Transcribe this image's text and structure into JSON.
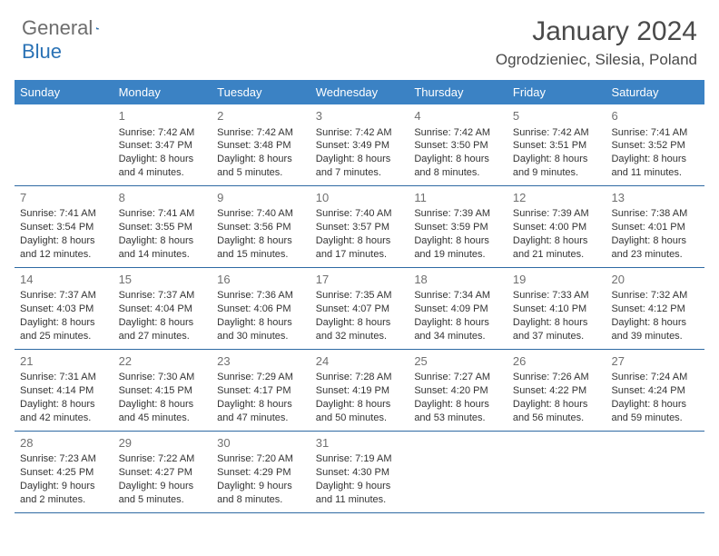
{
  "logo": {
    "general": "General",
    "blue": "Blue"
  },
  "title": "January 2024",
  "location": "Ogrodzieniec, Silesia, Poland",
  "colors": {
    "header_bg": "#3b82c4",
    "header_text": "#ffffff",
    "row_border": "#2f6aa3",
    "day_num": "#707070",
    "body_text": "#333333",
    "logo_gray": "#6d6d6d",
    "logo_blue": "#2a72b5",
    "background": "#ffffff"
  },
  "weekdays": [
    "Sunday",
    "Monday",
    "Tuesday",
    "Wednesday",
    "Thursday",
    "Friday",
    "Saturday"
  ],
  "weeks": [
    [
      null,
      {
        "n": "1",
        "sr": "Sunrise: 7:42 AM",
        "ss": "Sunset: 3:47 PM",
        "d1": "Daylight: 8 hours",
        "d2": "and 4 minutes."
      },
      {
        "n": "2",
        "sr": "Sunrise: 7:42 AM",
        "ss": "Sunset: 3:48 PM",
        "d1": "Daylight: 8 hours",
        "d2": "and 5 minutes."
      },
      {
        "n": "3",
        "sr": "Sunrise: 7:42 AM",
        "ss": "Sunset: 3:49 PM",
        "d1": "Daylight: 8 hours",
        "d2": "and 7 minutes."
      },
      {
        "n": "4",
        "sr": "Sunrise: 7:42 AM",
        "ss": "Sunset: 3:50 PM",
        "d1": "Daylight: 8 hours",
        "d2": "and 8 minutes."
      },
      {
        "n": "5",
        "sr": "Sunrise: 7:42 AM",
        "ss": "Sunset: 3:51 PM",
        "d1": "Daylight: 8 hours",
        "d2": "and 9 minutes."
      },
      {
        "n": "6",
        "sr": "Sunrise: 7:41 AM",
        "ss": "Sunset: 3:52 PM",
        "d1": "Daylight: 8 hours",
        "d2": "and 11 minutes."
      }
    ],
    [
      {
        "n": "7",
        "sr": "Sunrise: 7:41 AM",
        "ss": "Sunset: 3:54 PM",
        "d1": "Daylight: 8 hours",
        "d2": "and 12 minutes."
      },
      {
        "n": "8",
        "sr": "Sunrise: 7:41 AM",
        "ss": "Sunset: 3:55 PM",
        "d1": "Daylight: 8 hours",
        "d2": "and 14 minutes."
      },
      {
        "n": "9",
        "sr": "Sunrise: 7:40 AM",
        "ss": "Sunset: 3:56 PM",
        "d1": "Daylight: 8 hours",
        "d2": "and 15 minutes."
      },
      {
        "n": "10",
        "sr": "Sunrise: 7:40 AM",
        "ss": "Sunset: 3:57 PM",
        "d1": "Daylight: 8 hours",
        "d2": "and 17 minutes."
      },
      {
        "n": "11",
        "sr": "Sunrise: 7:39 AM",
        "ss": "Sunset: 3:59 PM",
        "d1": "Daylight: 8 hours",
        "d2": "and 19 minutes."
      },
      {
        "n": "12",
        "sr": "Sunrise: 7:39 AM",
        "ss": "Sunset: 4:00 PM",
        "d1": "Daylight: 8 hours",
        "d2": "and 21 minutes."
      },
      {
        "n": "13",
        "sr": "Sunrise: 7:38 AM",
        "ss": "Sunset: 4:01 PM",
        "d1": "Daylight: 8 hours",
        "d2": "and 23 minutes."
      }
    ],
    [
      {
        "n": "14",
        "sr": "Sunrise: 7:37 AM",
        "ss": "Sunset: 4:03 PM",
        "d1": "Daylight: 8 hours",
        "d2": "and 25 minutes."
      },
      {
        "n": "15",
        "sr": "Sunrise: 7:37 AM",
        "ss": "Sunset: 4:04 PM",
        "d1": "Daylight: 8 hours",
        "d2": "and 27 minutes."
      },
      {
        "n": "16",
        "sr": "Sunrise: 7:36 AM",
        "ss": "Sunset: 4:06 PM",
        "d1": "Daylight: 8 hours",
        "d2": "and 30 minutes."
      },
      {
        "n": "17",
        "sr": "Sunrise: 7:35 AM",
        "ss": "Sunset: 4:07 PM",
        "d1": "Daylight: 8 hours",
        "d2": "and 32 minutes."
      },
      {
        "n": "18",
        "sr": "Sunrise: 7:34 AM",
        "ss": "Sunset: 4:09 PM",
        "d1": "Daylight: 8 hours",
        "d2": "and 34 minutes."
      },
      {
        "n": "19",
        "sr": "Sunrise: 7:33 AM",
        "ss": "Sunset: 4:10 PM",
        "d1": "Daylight: 8 hours",
        "d2": "and 37 minutes."
      },
      {
        "n": "20",
        "sr": "Sunrise: 7:32 AM",
        "ss": "Sunset: 4:12 PM",
        "d1": "Daylight: 8 hours",
        "d2": "and 39 minutes."
      }
    ],
    [
      {
        "n": "21",
        "sr": "Sunrise: 7:31 AM",
        "ss": "Sunset: 4:14 PM",
        "d1": "Daylight: 8 hours",
        "d2": "and 42 minutes."
      },
      {
        "n": "22",
        "sr": "Sunrise: 7:30 AM",
        "ss": "Sunset: 4:15 PM",
        "d1": "Daylight: 8 hours",
        "d2": "and 45 minutes."
      },
      {
        "n": "23",
        "sr": "Sunrise: 7:29 AM",
        "ss": "Sunset: 4:17 PM",
        "d1": "Daylight: 8 hours",
        "d2": "and 47 minutes."
      },
      {
        "n": "24",
        "sr": "Sunrise: 7:28 AM",
        "ss": "Sunset: 4:19 PM",
        "d1": "Daylight: 8 hours",
        "d2": "and 50 minutes."
      },
      {
        "n": "25",
        "sr": "Sunrise: 7:27 AM",
        "ss": "Sunset: 4:20 PM",
        "d1": "Daylight: 8 hours",
        "d2": "and 53 minutes."
      },
      {
        "n": "26",
        "sr": "Sunrise: 7:26 AM",
        "ss": "Sunset: 4:22 PM",
        "d1": "Daylight: 8 hours",
        "d2": "and 56 minutes."
      },
      {
        "n": "27",
        "sr": "Sunrise: 7:24 AM",
        "ss": "Sunset: 4:24 PM",
        "d1": "Daylight: 8 hours",
        "d2": "and 59 minutes."
      }
    ],
    [
      {
        "n": "28",
        "sr": "Sunrise: 7:23 AM",
        "ss": "Sunset: 4:25 PM",
        "d1": "Daylight: 9 hours",
        "d2": "and 2 minutes."
      },
      {
        "n": "29",
        "sr": "Sunrise: 7:22 AM",
        "ss": "Sunset: 4:27 PM",
        "d1": "Daylight: 9 hours",
        "d2": "and 5 minutes."
      },
      {
        "n": "30",
        "sr": "Sunrise: 7:20 AM",
        "ss": "Sunset: 4:29 PM",
        "d1": "Daylight: 9 hours",
        "d2": "and 8 minutes."
      },
      {
        "n": "31",
        "sr": "Sunrise: 7:19 AM",
        "ss": "Sunset: 4:30 PM",
        "d1": "Daylight: 9 hours",
        "d2": "and 11 minutes."
      },
      null,
      null,
      null
    ]
  ]
}
